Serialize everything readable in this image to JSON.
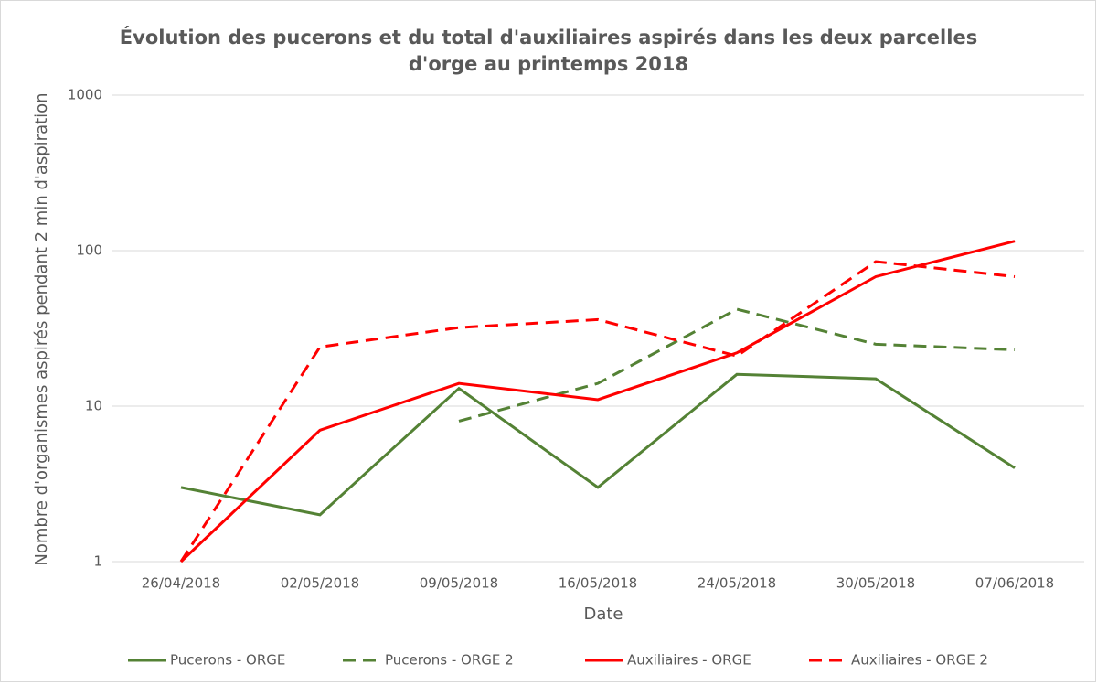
{
  "chart_data": {
    "type": "line",
    "title": [
      "Évolution des pucerons et du total d'auxiliaires aspirés dans les deux parcelles",
      "d'orge au printemps 2018"
    ],
    "x_label": "Date",
    "y_label": "Nombre d'organismes aspirés pendant 2 min d'aspiration",
    "categories": [
      "26/04/2018",
      "02/05/2018",
      "09/05/2018",
      "16/05/2018",
      "24/05/2018",
      "30/05/2018",
      "07/06/2018"
    ],
    "series": [
      {
        "name": "Pucerons - ORGE",
        "color": "#548235",
        "dashed": false,
        "values": [
          3,
          2,
          13,
          3,
          16,
          15,
          4
        ]
      },
      {
        "name": "Pucerons - ORGE 2",
        "color": "#548235",
        "dashed": true,
        "values": [
          null,
          null,
          8,
          14,
          42,
          25,
          23
        ]
      },
      {
        "name": "Auxiliaires - ORGE",
        "color": "#ff0000",
        "dashed": false,
        "values": [
          1,
          7,
          14,
          11,
          22,
          68,
          115
        ]
      },
      {
        "name": "Auxiliaires - ORGE 2",
        "color": "#ff0000",
        "dashed": true,
        "values": [
          1,
          24,
          32,
          36,
          21,
          85,
          68
        ]
      }
    ],
    "ylim": [
      1,
      1000
    ],
    "yticks": [
      1,
      10,
      100,
      1000
    ],
    "log_y": true,
    "grid": true,
    "legend": "bottom"
  }
}
